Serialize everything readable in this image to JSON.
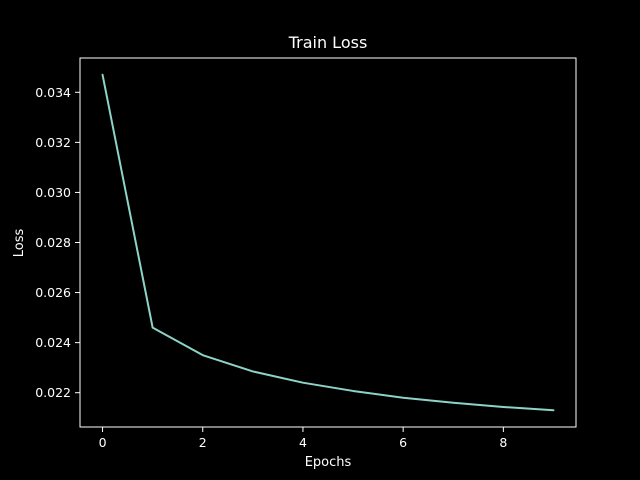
{
  "chart_data": {
    "type": "line",
    "title": "Train Loss",
    "xlabel": "Epochs",
    "ylabel": "Loss",
    "x": [
      0,
      1,
      2,
      3,
      4,
      5,
      6,
      7,
      8,
      9
    ],
    "series": [
      {
        "values": [
          0.0347,
          0.0246,
          0.0235,
          0.02285,
          0.0224,
          0.02207,
          0.0218,
          0.0216,
          0.02143,
          0.0213
        ],
        "color": "#8dd3c7"
      }
    ],
    "xlim": [
      -0.45,
      9.45
    ],
    "ylim": [
      0.02063,
      0.03537
    ],
    "x_ticks": [
      0,
      2,
      4,
      6,
      8
    ],
    "y_ticks": [
      0.022,
      0.024,
      0.026,
      0.028,
      0.03,
      0.032,
      0.034
    ],
    "x_tick_labels": [
      "0",
      "2",
      "4",
      "6",
      "8"
    ],
    "y_tick_labels": [
      "0.022",
      "0.024",
      "0.026",
      "0.028",
      "0.030",
      "0.032",
      "0.034"
    ],
    "grid": false,
    "legend": "none",
    "background_color": "#000000",
    "axis_color": "#ffffff"
  }
}
